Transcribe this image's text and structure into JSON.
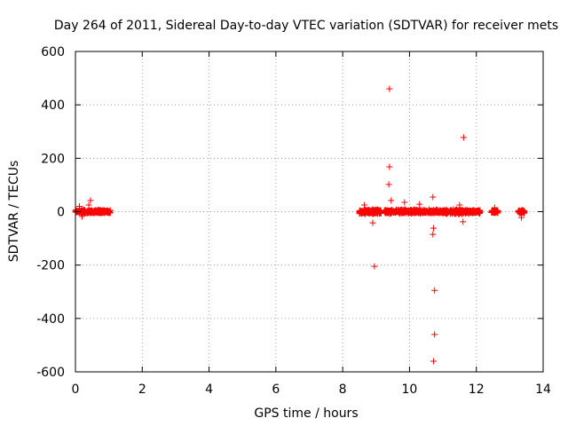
{
  "chart_data": {
    "type": "scatter",
    "title": "Day 264 of 2011, Sidereal Day-to-day VTEC variation (SDTVAR) for receiver mets",
    "xlabel": "GPS time / hours",
    "ylabel": "SDTVAR / TECUs",
    "xlim": [
      0,
      14
    ],
    "ylim": [
      -600,
      600
    ],
    "xticks": [
      0,
      2,
      4,
      6,
      8,
      10,
      12,
      14
    ],
    "yticks": [
      -600,
      -400,
      -200,
      0,
      200,
      400,
      600
    ],
    "grid": true,
    "marker": "+",
    "color": "#ff0000",
    "clusters": [
      {
        "x_start": 0.0,
        "x_end": 1.05,
        "y_spread": 8,
        "count": 260
      },
      {
        "x_start": 8.5,
        "x_end": 9.15,
        "y_spread": 10,
        "count": 220
      },
      {
        "x_start": 9.25,
        "x_end": 12.15,
        "y_spread": 10,
        "count": 700
      },
      {
        "x_start": 12.45,
        "x_end": 12.65,
        "y_spread": 8,
        "count": 45
      },
      {
        "x_start": 13.25,
        "x_end": 13.45,
        "y_spread": 8,
        "count": 45
      }
    ],
    "points": [
      {
        "x": 0.45,
        "y": 42
      },
      {
        "x": 0.4,
        "y": 25
      },
      {
        "x": 0.12,
        "y": 20
      },
      {
        "x": 0.2,
        "y": -18
      },
      {
        "x": 8.95,
        "y": -205
      },
      {
        "x": 8.9,
        "y": -42
      },
      {
        "x": 8.65,
        "y": 25
      },
      {
        "x": 9.4,
        "y": 460
      },
      {
        "x": 9.4,
        "y": 168
      },
      {
        "x": 9.38,
        "y": 102
      },
      {
        "x": 9.45,
        "y": 42
      },
      {
        "x": 9.85,
        "y": 35
      },
      {
        "x": 10.3,
        "y": 28
      },
      {
        "x": 10.7,
        "y": 55
      },
      {
        "x": 10.72,
        "y": -62
      },
      {
        "x": 10.7,
        "y": -85
      },
      {
        "x": 10.75,
        "y": -295
      },
      {
        "x": 10.75,
        "y": -460
      },
      {
        "x": 10.72,
        "y": -560
      },
      {
        "x": 11.62,
        "y": 278
      },
      {
        "x": 11.6,
        "y": -38
      },
      {
        "x": 11.5,
        "y": 25
      },
      {
        "x": 12.55,
        "y": 15
      },
      {
        "x": 13.35,
        "y": -22
      }
    ]
  }
}
